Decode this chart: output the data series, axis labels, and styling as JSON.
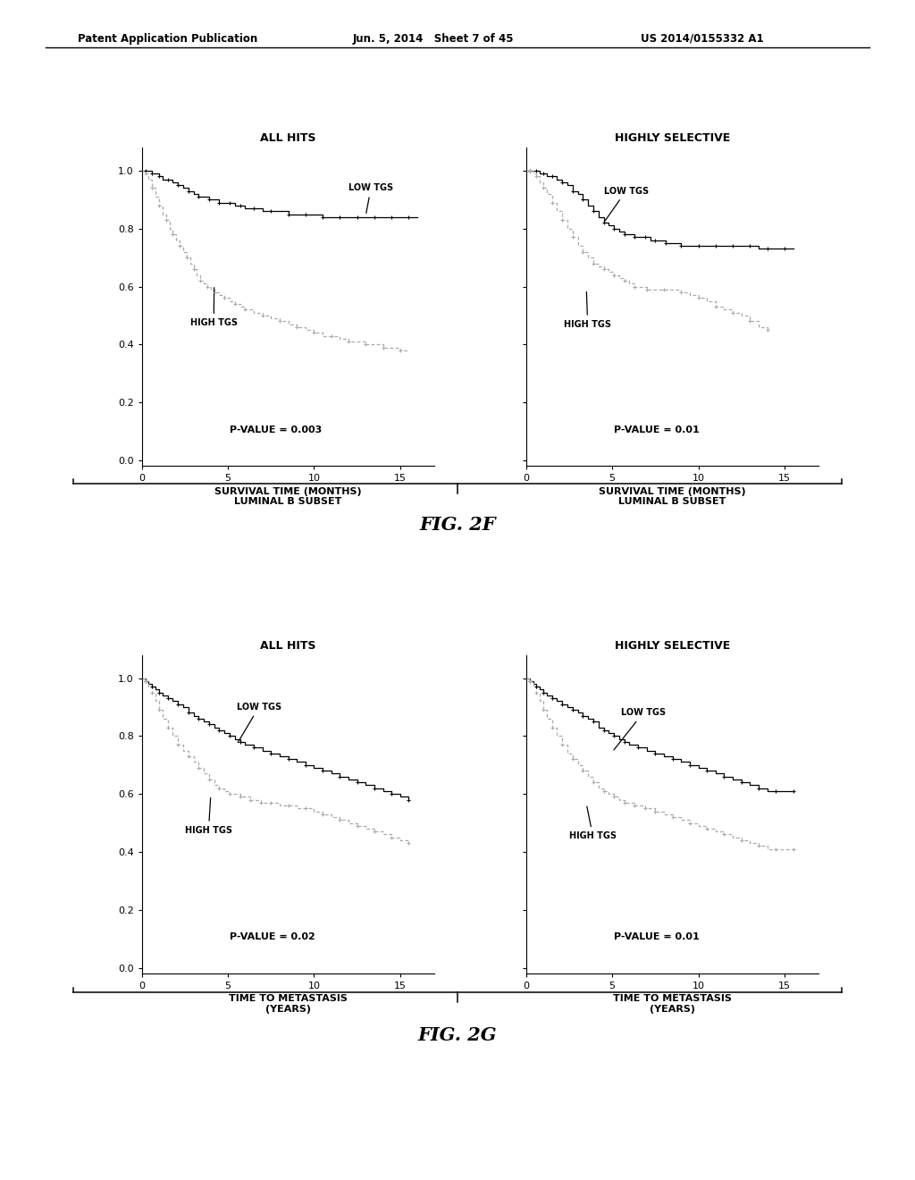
{
  "header_left": "Patent Application Publication",
  "header_center": "Jun. 5, 2014   Sheet 7 of 45",
  "header_right": "US 2014/0155332 A1",
  "fig2f_title": "FIG. 2F",
  "fig2g_title": "FIG. 2G",
  "panel_titles": [
    "ALL HITS",
    "HIGHLY SELECTIVE"
  ],
  "fig2f_pvalues": [
    "P-VALUE = 0.003",
    "P-VALUE = 0.01"
  ],
  "fig2g_pvalues": [
    "P-VALUE = 0.02",
    "P-VALUE = 0.01"
  ],
  "fig2f_xlabel": "SURVIVAL TIME (MONTHS)\nLUMINAL B SUBSET",
  "fig2g_xlabel": "TIME TO METASTASIS\n(YEARS)",
  "yticks": [
    0.0,
    0.2,
    0.4,
    0.6,
    0.8,
    1.0
  ],
  "xticks": [
    0,
    5,
    10,
    15
  ],
  "xlim": [
    0,
    17
  ],
  "ylim": [
    -0.02,
    1.08
  ],
  "low_tgs_label": "LOW TGS",
  "high_tgs_label": "HIGH TGS",
  "color_low": "#000000",
  "color_high": "#aaaaaa",
  "fig2f_low_tgs_1_x": [
    0,
    0.2,
    0.4,
    0.6,
    0.8,
    1.0,
    1.2,
    1.5,
    1.8,
    2.1,
    2.4,
    2.7,
    3.0,
    3.3,
    3.6,
    3.9,
    4.2,
    4.5,
    4.8,
    5.1,
    5.4,
    5.7,
    6.0,
    6.5,
    7.0,
    7.5,
    8.0,
    8.5,
    9.0,
    9.5,
    10.0,
    10.5,
    11.0,
    11.5,
    12.0,
    12.5,
    13.0,
    13.5,
    14.0,
    14.5,
    15.0,
    15.5,
    16.0
  ],
  "fig2f_low_tgs_1_y": [
    1.0,
    1.0,
    1.0,
    0.99,
    0.99,
    0.98,
    0.97,
    0.97,
    0.96,
    0.95,
    0.94,
    0.93,
    0.92,
    0.91,
    0.91,
    0.9,
    0.9,
    0.89,
    0.89,
    0.89,
    0.88,
    0.88,
    0.87,
    0.87,
    0.86,
    0.86,
    0.86,
    0.85,
    0.85,
    0.85,
    0.85,
    0.84,
    0.84,
    0.84,
    0.84,
    0.84,
    0.84,
    0.84,
    0.84,
    0.84,
    0.84,
    0.84,
    0.84
  ],
  "fig2f_high_tgs_1_x": [
    0,
    0.2,
    0.4,
    0.6,
    0.8,
    1.0,
    1.2,
    1.4,
    1.6,
    1.8,
    2.0,
    2.2,
    2.4,
    2.6,
    2.8,
    3.0,
    3.2,
    3.4,
    3.6,
    3.8,
    4.0,
    4.2,
    4.5,
    4.8,
    5.1,
    5.4,
    5.7,
    6.0,
    6.5,
    7.0,
    7.5,
    8.0,
    8.5,
    9.0,
    9.5,
    10.0,
    10.5,
    11.0,
    11.5,
    12.0,
    12.5,
    13.0,
    13.5,
    14.0,
    14.5,
    15.0,
    15.5
  ],
  "fig2f_high_tgs_1_y": [
    1.0,
    0.99,
    0.97,
    0.94,
    0.91,
    0.88,
    0.85,
    0.83,
    0.8,
    0.78,
    0.76,
    0.74,
    0.72,
    0.7,
    0.68,
    0.66,
    0.64,
    0.62,
    0.61,
    0.6,
    0.59,
    0.58,
    0.57,
    0.56,
    0.55,
    0.54,
    0.53,
    0.52,
    0.51,
    0.5,
    0.49,
    0.48,
    0.47,
    0.46,
    0.45,
    0.44,
    0.43,
    0.43,
    0.42,
    0.41,
    0.41,
    0.4,
    0.4,
    0.39,
    0.39,
    0.38,
    0.38
  ],
  "fig2f_low_tgs_2_x": [
    0,
    0.2,
    0.4,
    0.6,
    0.8,
    1.0,
    1.2,
    1.5,
    1.8,
    2.1,
    2.4,
    2.7,
    3.0,
    3.3,
    3.6,
    3.9,
    4.2,
    4.5,
    4.8,
    5.1,
    5.4,
    5.7,
    6.0,
    6.3,
    6.6,
    6.9,
    7.2,
    7.5,
    7.8,
    8.1,
    8.5,
    9.0,
    9.5,
    10.0,
    10.5,
    11.0,
    11.5,
    12.0,
    12.5,
    13.0,
    13.5,
    14.0,
    14.5,
    15.0,
    15.5
  ],
  "fig2f_low_tgs_2_y": [
    1.0,
    1.0,
    1.0,
    1.0,
    0.99,
    0.99,
    0.98,
    0.98,
    0.97,
    0.96,
    0.95,
    0.93,
    0.92,
    0.9,
    0.88,
    0.86,
    0.84,
    0.82,
    0.81,
    0.8,
    0.79,
    0.78,
    0.78,
    0.77,
    0.77,
    0.77,
    0.76,
    0.76,
    0.76,
    0.75,
    0.75,
    0.74,
    0.74,
    0.74,
    0.74,
    0.74,
    0.74,
    0.74,
    0.74,
    0.74,
    0.73,
    0.73,
    0.73,
    0.73,
    0.73
  ],
  "fig2f_high_tgs_2_x": [
    0,
    0.2,
    0.4,
    0.6,
    0.8,
    1.0,
    1.2,
    1.5,
    1.8,
    2.1,
    2.4,
    2.7,
    3.0,
    3.3,
    3.6,
    3.9,
    4.2,
    4.5,
    4.8,
    5.1,
    5.4,
    5.7,
    6.0,
    6.3,
    6.5,
    7.0,
    7.5,
    8.0,
    8.5,
    9.0,
    9.5,
    10.0,
    10.5,
    11.0,
    11.5,
    12.0,
    12.5,
    13.0,
    13.5,
    14.0
  ],
  "fig2f_high_tgs_2_y": [
    1.0,
    1.0,
    0.99,
    0.98,
    0.96,
    0.94,
    0.92,
    0.89,
    0.86,
    0.83,
    0.8,
    0.77,
    0.74,
    0.72,
    0.7,
    0.68,
    0.67,
    0.66,
    0.65,
    0.64,
    0.63,
    0.62,
    0.61,
    0.6,
    0.6,
    0.59,
    0.59,
    0.59,
    0.59,
    0.58,
    0.57,
    0.56,
    0.55,
    0.53,
    0.52,
    0.51,
    0.5,
    0.48,
    0.46,
    0.45
  ],
  "fig2g_low_tgs_1_x": [
    0,
    0.2,
    0.4,
    0.6,
    0.8,
    1.0,
    1.2,
    1.5,
    1.8,
    2.1,
    2.4,
    2.7,
    3.0,
    3.3,
    3.6,
    3.9,
    4.2,
    4.5,
    4.8,
    5.1,
    5.4,
    5.7,
    6.0,
    6.5,
    7.0,
    7.5,
    8.0,
    8.5,
    9.0,
    9.5,
    10.0,
    10.5,
    11.0,
    11.5,
    12.0,
    12.5,
    13.0,
    13.5,
    14.0,
    14.5,
    15.0,
    15.5
  ],
  "fig2g_low_tgs_1_y": [
    1.0,
    0.99,
    0.98,
    0.97,
    0.96,
    0.95,
    0.94,
    0.93,
    0.92,
    0.91,
    0.9,
    0.88,
    0.87,
    0.86,
    0.85,
    0.84,
    0.83,
    0.82,
    0.81,
    0.8,
    0.79,
    0.78,
    0.77,
    0.76,
    0.75,
    0.74,
    0.73,
    0.72,
    0.71,
    0.7,
    0.69,
    0.68,
    0.67,
    0.66,
    0.65,
    0.64,
    0.63,
    0.62,
    0.61,
    0.6,
    0.59,
    0.58
  ],
  "fig2g_high_tgs_1_x": [
    0,
    0.2,
    0.4,
    0.6,
    0.8,
    1.0,
    1.2,
    1.5,
    1.8,
    2.1,
    2.4,
    2.7,
    3.0,
    3.3,
    3.6,
    3.9,
    4.2,
    4.5,
    4.8,
    5.1,
    5.4,
    5.7,
    6.0,
    6.3,
    6.6,
    6.9,
    7.2,
    7.5,
    8.0,
    8.5,
    9.0,
    9.5,
    10.0,
    10.5,
    11.0,
    11.5,
    12.0,
    12.5,
    13.0,
    13.5,
    14.0,
    14.5,
    15.0,
    15.5
  ],
  "fig2g_high_tgs_1_y": [
    1.0,
    0.99,
    0.97,
    0.95,
    0.92,
    0.89,
    0.86,
    0.83,
    0.8,
    0.77,
    0.75,
    0.73,
    0.71,
    0.69,
    0.67,
    0.65,
    0.63,
    0.62,
    0.61,
    0.6,
    0.6,
    0.59,
    0.59,
    0.58,
    0.58,
    0.57,
    0.57,
    0.57,
    0.56,
    0.56,
    0.55,
    0.55,
    0.54,
    0.53,
    0.52,
    0.51,
    0.5,
    0.49,
    0.48,
    0.47,
    0.46,
    0.45,
    0.44,
    0.43
  ],
  "fig2g_low_tgs_2_x": [
    0,
    0.2,
    0.4,
    0.6,
    0.8,
    1.0,
    1.2,
    1.5,
    1.8,
    2.1,
    2.4,
    2.7,
    3.0,
    3.3,
    3.6,
    3.9,
    4.2,
    4.5,
    4.8,
    5.1,
    5.4,
    5.7,
    6.0,
    6.5,
    7.0,
    7.5,
    8.0,
    8.5,
    9.0,
    9.5,
    10.0,
    10.5,
    11.0,
    11.5,
    12.0,
    12.5,
    13.0,
    13.5,
    14.0,
    14.5,
    15.0,
    15.5
  ],
  "fig2g_low_tgs_2_y": [
    1.0,
    0.99,
    0.98,
    0.97,
    0.96,
    0.95,
    0.94,
    0.93,
    0.92,
    0.91,
    0.9,
    0.89,
    0.88,
    0.87,
    0.86,
    0.85,
    0.83,
    0.82,
    0.81,
    0.8,
    0.79,
    0.78,
    0.77,
    0.76,
    0.75,
    0.74,
    0.73,
    0.72,
    0.71,
    0.7,
    0.69,
    0.68,
    0.67,
    0.66,
    0.65,
    0.64,
    0.63,
    0.62,
    0.61,
    0.61,
    0.61,
    0.61
  ],
  "fig2g_high_tgs_2_x": [
    0,
    0.2,
    0.4,
    0.6,
    0.8,
    1.0,
    1.2,
    1.5,
    1.8,
    2.1,
    2.4,
    2.7,
    3.0,
    3.3,
    3.6,
    3.9,
    4.2,
    4.5,
    4.8,
    5.1,
    5.4,
    5.7,
    6.0,
    6.3,
    6.6,
    6.9,
    7.2,
    7.5,
    8.0,
    8.5,
    9.0,
    9.5,
    10.0,
    10.5,
    11.0,
    11.5,
    12.0,
    12.5,
    13.0,
    13.5,
    14.0,
    14.5,
    15.0,
    15.5
  ],
  "fig2g_high_tgs_2_y": [
    1.0,
    0.99,
    0.97,
    0.95,
    0.92,
    0.89,
    0.86,
    0.83,
    0.8,
    0.77,
    0.74,
    0.72,
    0.7,
    0.68,
    0.66,
    0.64,
    0.62,
    0.61,
    0.6,
    0.59,
    0.58,
    0.57,
    0.57,
    0.56,
    0.56,
    0.55,
    0.55,
    0.54,
    0.53,
    0.52,
    0.51,
    0.5,
    0.49,
    0.48,
    0.47,
    0.46,
    0.45,
    0.44,
    0.43,
    0.42,
    0.41,
    0.41,
    0.41,
    0.41
  ]
}
